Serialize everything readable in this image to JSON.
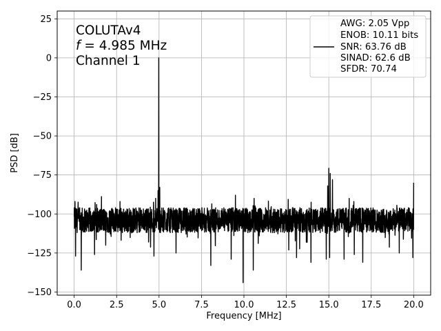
{
  "chart_data": {
    "type": "line",
    "xlabel": "Frequency [MHz]",
    "ylabel": "PSD [dB]",
    "xlim": [
      -1.0,
      21.0
    ],
    "ylim": [
      -152,
      30
    ],
    "xticks": [
      0.0,
      2.5,
      5.0,
      7.5,
      10.0,
      12.5,
      15.0,
      17.5,
      20.0
    ],
    "xtick_labels": [
      "0.0",
      "2.5",
      "5.0",
      "7.5",
      "10.0",
      "12.5",
      "15.0",
      "17.5",
      "20.0"
    ],
    "yticks": [
      25,
      0,
      -25,
      -50,
      -75,
      -100,
      -125,
      -150
    ],
    "ytick_labels": [
      "25",
      "0",
      "−25",
      "−50",
      "−75",
      "−100",
      "−125",
      "−150"
    ],
    "grid": true,
    "annotation": {
      "line1": "COLUTAv4",
      "line2_var": "f",
      "line2_rest": " = 4.985 MHz",
      "line3": "Channel 1"
    },
    "legend": {
      "placement": "top-right",
      "entries": [
        "AWG: 2.05 Vpp",
        "ENOB: 10.11 bits",
        "SNR: 63.76 dB",
        "SINAD: 62.6 dB",
        "SFDR: 70.74"
      ]
    },
    "series": [
      {
        "color": "#000000",
        "noise_floor_db": -104,
        "x_range": [
          0.0,
          20.0
        ],
        "peaks": [
          {
            "x": 4.985,
            "y": 0
          },
          {
            "x": 4.94,
            "y": -85
          },
          {
            "x": 5.04,
            "y": -83
          },
          {
            "x": 4.8,
            "y": -90
          },
          {
            "x": 15.0,
            "y": -70.7
          },
          {
            "x": 15.08,
            "y": -74
          },
          {
            "x": 15.22,
            "y": -78
          },
          {
            "x": 14.93,
            "y": -82
          },
          {
            "x": 9.5,
            "y": -88
          },
          {
            "x": 20.0,
            "y": -80
          },
          {
            "x": 0.05,
            "y": -92
          },
          {
            "x": 2.7,
            "y": -92
          },
          {
            "x": 10.6,
            "y": -90
          },
          {
            "x": 16.2,
            "y": -90
          }
        ],
        "dips": [
          {
            "x": 0.08,
            "y": -127
          },
          {
            "x": 0.42,
            "y": -136
          },
          {
            "x": 1.2,
            "y": -126
          },
          {
            "x": 4.7,
            "y": -127
          },
          {
            "x": 6.0,
            "y": -125
          },
          {
            "x": 8.05,
            "y": -133
          },
          {
            "x": 9.25,
            "y": -129
          },
          {
            "x": 9.95,
            "y": -144
          },
          {
            "x": 10.55,
            "y": -136
          },
          {
            "x": 13.1,
            "y": -128
          },
          {
            "x": 13.95,
            "y": -131
          },
          {
            "x": 14.85,
            "y": -129
          },
          {
            "x": 15.05,
            "y": -128
          },
          {
            "x": 15.9,
            "y": -129
          },
          {
            "x": 16.5,
            "y": -126
          },
          {
            "x": 17.0,
            "y": -131
          },
          {
            "x": 19.15,
            "y": -125
          },
          {
            "x": 19.95,
            "y": -128
          }
        ]
      }
    ]
  }
}
